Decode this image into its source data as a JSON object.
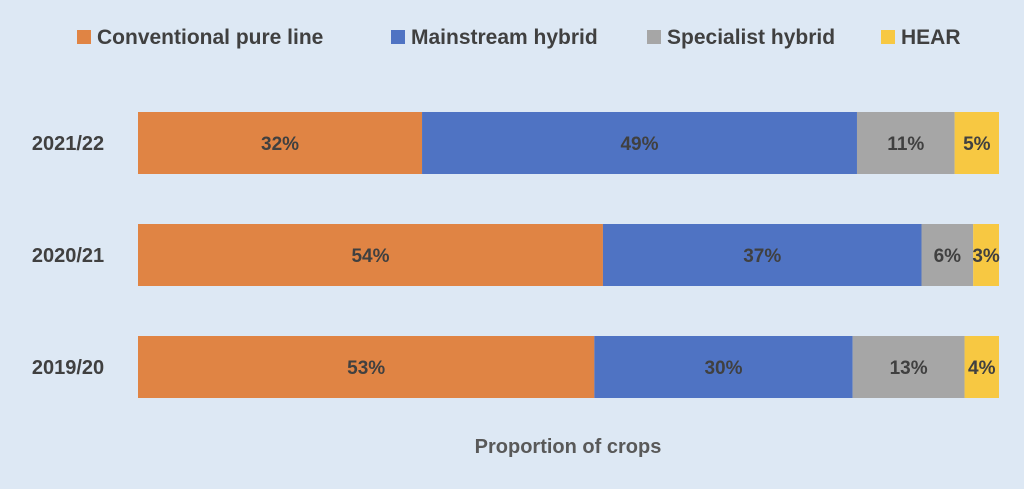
{
  "chart_data": {
    "type": "bar",
    "orientation": "horizontal",
    "stacked": "100%",
    "categories": [
      "2021/22",
      "2020/21",
      "2019/20"
    ],
    "series": [
      {
        "name": "Conventional pure line",
        "color": "#e08444",
        "values": [
          32,
          54,
          53
        ],
        "labels": [
          "32%",
          "54%",
          "53%"
        ]
      },
      {
        "name": "Mainstream hybrid",
        "color": "#4f73c3",
        "values": [
          49,
          37,
          30
        ],
        "labels": [
          "49%",
          "37%",
          "30%"
        ]
      },
      {
        "name": "Specialist hybrid",
        "color": "#a6a6a6",
        "values": [
          11,
          6,
          13
        ],
        "labels": [
          "11%",
          "6%",
          "13%"
        ]
      },
      {
        "name": "HEAR",
        "color": "#f7c842",
        "values": [
          5,
          3,
          4
        ],
        "labels": [
          "5%",
          "3%",
          "4%"
        ]
      }
    ],
    "xlabel": "Proportion of crops",
    "ylabel": "",
    "legend_position": "top",
    "grid": false
  }
}
